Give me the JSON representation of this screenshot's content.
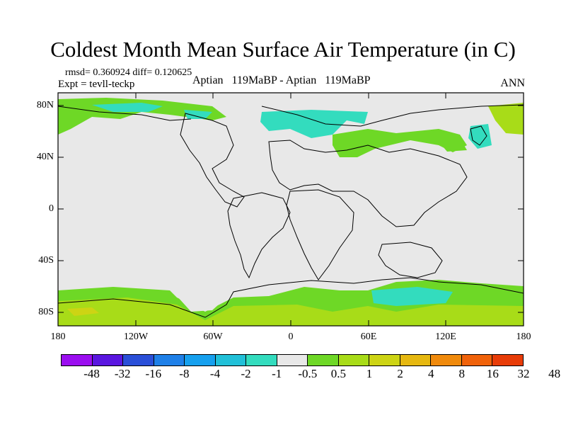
{
  "title": "Coldest Month Mean Surface Air Temperature (in C)",
  "stats": "rmsd= 0.360924  diff= 0.120625",
  "expt": "Expt = tevll-teckp",
  "center_label": "Aptian   119MaBP - Aptian   119MaBP",
  "season": "ANN",
  "y_ticks": [
    "80N",
    "40N",
    "0",
    "40S",
    "80S"
  ],
  "x_ticks": [
    "180",
    "120W",
    "60W",
    "0",
    "60E",
    "120E",
    "180"
  ],
  "colorbar": {
    "colors": [
      "#9b0ef0",
      "#5a16e0",
      "#2a4fd8",
      "#1f80e8",
      "#16a0ee",
      "#21c0d8",
      "#33dcbe",
      "#e8e8e8",
      "#6ed826",
      "#a8dc18",
      "#cdd414",
      "#e6b810",
      "#f08a0c",
      "#f0620a",
      "#e83c08"
    ],
    "labels": [
      "-48",
      "-32",
      "-16",
      "-8",
      "-4",
      "-2",
      "-1",
      "-0.5",
      "0.5",
      "1",
      "2",
      "4",
      "8",
      "16",
      "32",
      "48"
    ]
  },
  "map": {
    "background": "#e8e8e8",
    "cyan": "#33dcbe",
    "green": "#6ed826",
    "yellowgreen": "#a8dc18",
    "orange": "#e6b810"
  }
}
